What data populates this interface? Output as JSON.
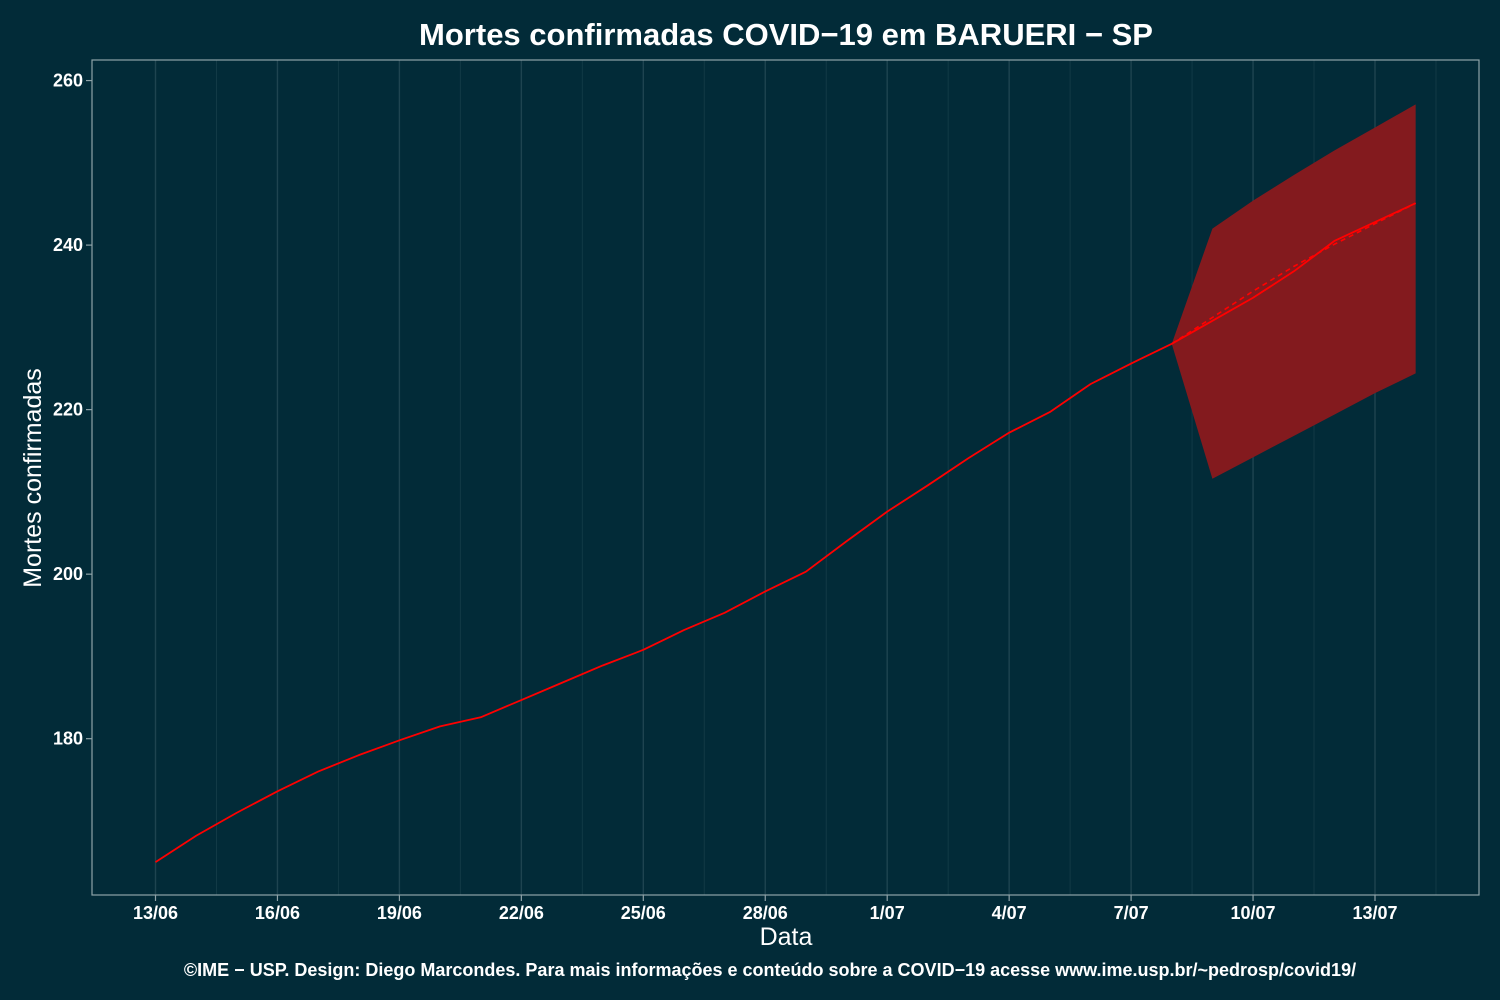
{
  "colors": {
    "background": "#022b38",
    "panel_border": "#8fa3a8",
    "grid_major": "#1e4450",
    "grid_minor": "#123a46",
    "line": "#ff0000",
    "band": "#831a1e"
  },
  "chart_data": {
    "type": "line",
    "title": "Mortes confirmadas COVID−19 em BARUERI − SP",
    "xlabel": "Data",
    "ylabel": "Mortes confirmadas",
    "caption": "©IME − USP. Design: Diego Marcondes. Para mais informações e conteúdo sobre a COVID−19 acesse www.ime.usp.br/~pedrosp/covid19/",
    "x_dates": [
      "13/06",
      "14/06",
      "15/06",
      "16/06",
      "17/06",
      "18/06",
      "19/06",
      "20/06",
      "21/06",
      "22/06",
      "23/06",
      "24/06",
      "25/06",
      "26/06",
      "27/06",
      "28/06",
      "29/06",
      "30/06",
      "1/07",
      "2/07",
      "3/07",
      "4/07",
      "5/07",
      "6/07",
      "7/07",
      "8/07",
      "9/07",
      "10/07",
      "11/07",
      "12/07",
      "13/07",
      "14/07"
    ],
    "x_tick_labels": [
      "13/06",
      "16/06",
      "19/06",
      "22/06",
      "25/06",
      "28/06",
      "1/07",
      "4/07",
      "7/07",
      "10/07",
      "13/07"
    ],
    "y_ticks": [
      180,
      200,
      220,
      240,
      260
    ],
    "ylim": [
      161,
      262.5
    ],
    "grid": true,
    "series": [
      {
        "style": "solid",
        "x": [
          "13/06",
          "14/06",
          "15/06",
          "16/06",
          "17/06",
          "18/06",
          "19/06",
          "20/06",
          "21/06",
          "22/06",
          "23/06",
          "24/06",
          "25/06",
          "26/06",
          "27/06",
          "28/06",
          "29/06",
          "30/06",
          "1/07",
          "2/07",
          "3/07",
          "4/07",
          "5/07",
          "6/07",
          "7/07",
          "8/07",
          "9/07",
          "10/07",
          "11/07",
          "12/07",
          "13/07",
          "14/07"
        ],
        "values": [
          165,
          168.2,
          171,
          173.6,
          176,
          178,
          179.8,
          181.5,
          182.6,
          184.7,
          186.8,
          188.9,
          190.8,
          193.2,
          195.3,
          197.9,
          200.3,
          204,
          207.6,
          210.8,
          214.1,
          217.2,
          219.7,
          223.1,
          225.6,
          228,
          230.8,
          233.6,
          236.8,
          240.5,
          242.8,
          245.1
        ]
      },
      {
        "style": "dashed",
        "x": [
          "8/07",
          "9/07",
          "10/07",
          "11/07",
          "12/07",
          "13/07",
          "14/07"
        ],
        "values": [
          228,
          231.2,
          234.4,
          237.4,
          240.1,
          242.6,
          245.1
        ]
      }
    ],
    "band": {
      "x": [
        "8/07",
        "9/07",
        "10/07",
        "11/07",
        "12/07",
        "13/07",
        "14/07"
      ],
      "lower": [
        228,
        211.6,
        214.2,
        216.8,
        219.4,
        222,
        224.4
      ],
      "upper": [
        228,
        242,
        245.4,
        248.5,
        251.5,
        254.3,
        257.1
      ]
    }
  }
}
